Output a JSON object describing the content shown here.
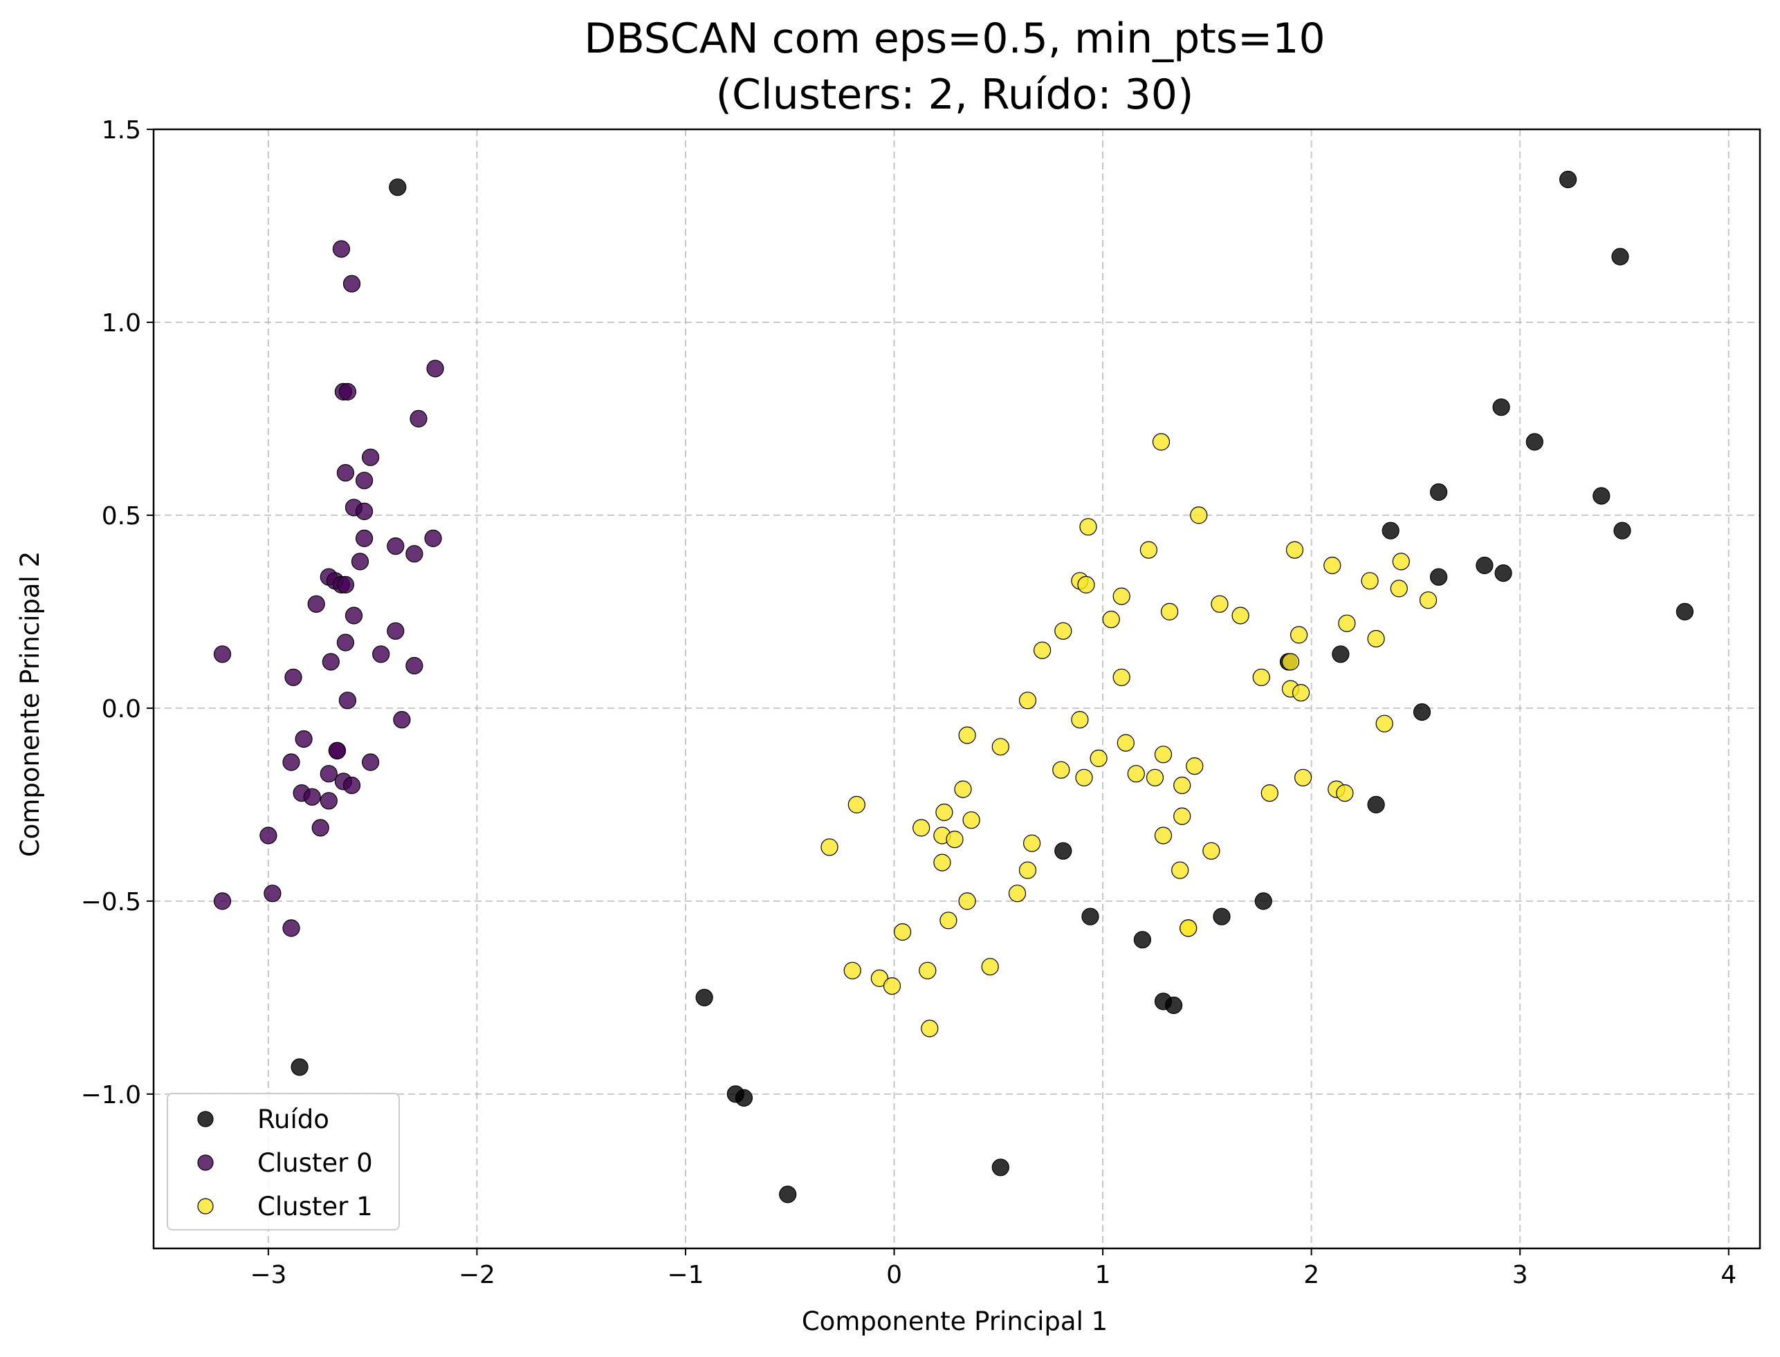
{
  "chart_data": {
    "type": "scatter",
    "title_line1": "DBSCAN com eps=0.5, min_pts=10",
    "title_line2": "(Clusters: 2, Ruído: 30)",
    "xlabel": "Componente Principal 1",
    "ylabel": "Componente Principal 2",
    "xlim": [
      -3.55,
      4.15
    ],
    "ylim": [
      -1.4,
      1.5
    ],
    "xticks": [
      -3,
      -2,
      -1,
      0,
      1,
      2,
      3,
      4
    ],
    "yticks": [
      -1.0,
      -0.5,
      0.0,
      0.5,
      1.0,
      1.5
    ],
    "xtick_labels": [
      "−3",
      "−2",
      "−1",
      "0",
      "1",
      "2",
      "3",
      "4"
    ],
    "ytick_labels": [
      "−1.0",
      "−0.5",
      "0.0",
      "0.5",
      "1.0",
      "1.5"
    ],
    "grid": true,
    "legend_position": "lower-left",
    "series": [
      {
        "name": "Ruído",
        "color": "#000000",
        "points": [
          [
            -2.38,
            1.35
          ],
          [
            -2.85,
            -0.93
          ],
          [
            -0.91,
            -0.75
          ],
          [
            -0.76,
            -1.0
          ],
          [
            -0.72,
            -1.01
          ],
          [
            -0.51,
            -1.26
          ],
          [
            0.51,
            -1.19
          ],
          [
            0.81,
            -0.37
          ],
          [
            0.94,
            -0.54
          ],
          [
            1.19,
            -0.6
          ],
          [
            1.29,
            -0.76
          ],
          [
            1.34,
            -0.77
          ],
          [
            1.57,
            -0.54
          ],
          [
            1.77,
            -0.5
          ],
          [
            1.89,
            0.12
          ],
          [
            2.14,
            0.14
          ],
          [
            2.31,
            -0.25
          ],
          [
            2.38,
            0.46
          ],
          [
            2.53,
            -0.01
          ],
          [
            2.61,
            0.56
          ],
          [
            2.61,
            0.34
          ],
          [
            2.83,
            0.37
          ],
          [
            2.91,
            0.78
          ],
          [
            2.92,
            0.35
          ],
          [
            3.07,
            0.69
          ],
          [
            3.23,
            1.37
          ],
          [
            3.39,
            0.55
          ],
          [
            3.48,
            1.17
          ],
          [
            3.49,
            0.46
          ],
          [
            3.79,
            0.25
          ]
        ]
      },
      {
        "name": "Cluster 0",
        "color": "#440154",
        "points": [
          [
            -2.65,
            1.19
          ],
          [
            -2.6,
            1.1
          ],
          [
            -2.2,
            0.88
          ],
          [
            -2.64,
            0.82
          ],
          [
            -2.62,
            0.82
          ],
          [
            -2.28,
            0.75
          ],
          [
            -2.51,
            0.65
          ],
          [
            -2.63,
            0.61
          ],
          [
            -2.54,
            0.59
          ],
          [
            -2.59,
            0.52
          ],
          [
            -2.54,
            0.51
          ],
          [
            -2.54,
            0.44
          ],
          [
            -2.39,
            0.42
          ],
          [
            -2.21,
            0.44
          ],
          [
            -2.3,
            0.4
          ],
          [
            -2.56,
            0.38
          ],
          [
            -2.71,
            0.34
          ],
          [
            -2.68,
            0.33
          ],
          [
            -2.65,
            0.32
          ],
          [
            -2.63,
            0.32
          ],
          [
            -2.77,
            0.27
          ],
          [
            -2.59,
            0.24
          ],
          [
            -2.39,
            0.2
          ],
          [
            -2.63,
            0.17
          ],
          [
            -2.46,
            0.14
          ],
          [
            -2.7,
            0.12
          ],
          [
            -2.3,
            0.11
          ],
          [
            -3.22,
            0.14
          ],
          [
            -2.88,
            0.08
          ],
          [
            -2.62,
            0.02
          ],
          [
            -2.36,
            -0.03
          ],
          [
            -2.83,
            -0.08
          ],
          [
            -2.67,
            -0.11
          ],
          [
            -2.67,
            -0.11
          ],
          [
            -2.51,
            -0.14
          ],
          [
            -2.89,
            -0.14
          ],
          [
            -2.71,
            -0.17
          ],
          [
            -2.64,
            -0.19
          ],
          [
            -2.6,
            -0.2
          ],
          [
            -2.84,
            -0.22
          ],
          [
            -2.79,
            -0.23
          ],
          [
            -2.71,
            -0.24
          ],
          [
            -2.75,
            -0.31
          ],
          [
            -3.0,
            -0.33
          ],
          [
            -2.98,
            -0.48
          ],
          [
            -3.22,
            -0.5
          ],
          [
            -2.89,
            -0.57
          ]
        ]
      },
      {
        "name": "Cluster 1",
        "color": "#fde725",
        "points": [
          [
            1.28,
            0.69
          ],
          [
            1.46,
            0.5
          ],
          [
            0.93,
            0.47
          ],
          [
            1.22,
            0.41
          ],
          [
            1.92,
            0.41
          ],
          [
            2.43,
            0.38
          ],
          [
            2.1,
            0.37
          ],
          [
            2.28,
            0.33
          ],
          [
            0.89,
            0.33
          ],
          [
            0.92,
            0.32
          ],
          [
            2.42,
            0.31
          ],
          [
            1.09,
            0.29
          ],
          [
            2.56,
            0.28
          ],
          [
            1.56,
            0.27
          ],
          [
            1.32,
            0.25
          ],
          [
            1.66,
            0.24
          ],
          [
            1.04,
            0.23
          ],
          [
            2.17,
            0.22
          ],
          [
            0.81,
            0.2
          ],
          [
            1.94,
            0.19
          ],
          [
            2.31,
            0.18
          ],
          [
            0.71,
            0.15
          ],
          [
            1.9,
            0.12
          ],
          [
            1.76,
            0.08
          ],
          [
            1.09,
            0.08
          ],
          [
            1.9,
            0.05
          ],
          [
            1.95,
            0.04
          ],
          [
            0.64,
            0.02
          ],
          [
            0.89,
            -0.03
          ],
          [
            2.35,
            -0.04
          ],
          [
            0.35,
            -0.07
          ],
          [
            1.11,
            -0.09
          ],
          [
            0.51,
            -0.1
          ],
          [
            1.29,
            -0.12
          ],
          [
            0.98,
            -0.13
          ],
          [
            1.44,
            -0.15
          ],
          [
            0.8,
            -0.16
          ],
          [
            1.16,
            -0.17
          ],
          [
            1.25,
            -0.18
          ],
          [
            0.91,
            -0.18
          ],
          [
            1.96,
            -0.18
          ],
          [
            1.38,
            -0.2
          ],
          [
            0.33,
            -0.21
          ],
          [
            2.12,
            -0.21
          ],
          [
            2.16,
            -0.22
          ],
          [
            1.8,
            -0.22
          ],
          [
            -0.18,
            -0.25
          ],
          [
            0.24,
            -0.27
          ],
          [
            1.38,
            -0.28
          ],
          [
            0.37,
            -0.29
          ],
          [
            0.13,
            -0.31
          ],
          [
            1.29,
            -0.33
          ],
          [
            0.23,
            -0.33
          ],
          [
            0.29,
            -0.34
          ],
          [
            0.66,
            -0.35
          ],
          [
            -0.31,
            -0.36
          ],
          [
            1.52,
            -0.37
          ],
          [
            0.23,
            -0.4
          ],
          [
            0.64,
            -0.42
          ],
          [
            1.37,
            -0.42
          ],
          [
            0.59,
            -0.48
          ],
          [
            0.35,
            -0.5
          ],
          [
            0.26,
            -0.55
          ],
          [
            1.41,
            -0.57
          ],
          [
            1.41,
            -0.57
          ],
          [
            0.04,
            -0.58
          ],
          [
            0.46,
            -0.67
          ],
          [
            -0.2,
            -0.68
          ],
          [
            0.16,
            -0.68
          ],
          [
            -0.07,
            -0.7
          ],
          [
            -0.01,
            -0.72
          ],
          [
            0.17,
            -0.83
          ]
        ]
      }
    ]
  }
}
